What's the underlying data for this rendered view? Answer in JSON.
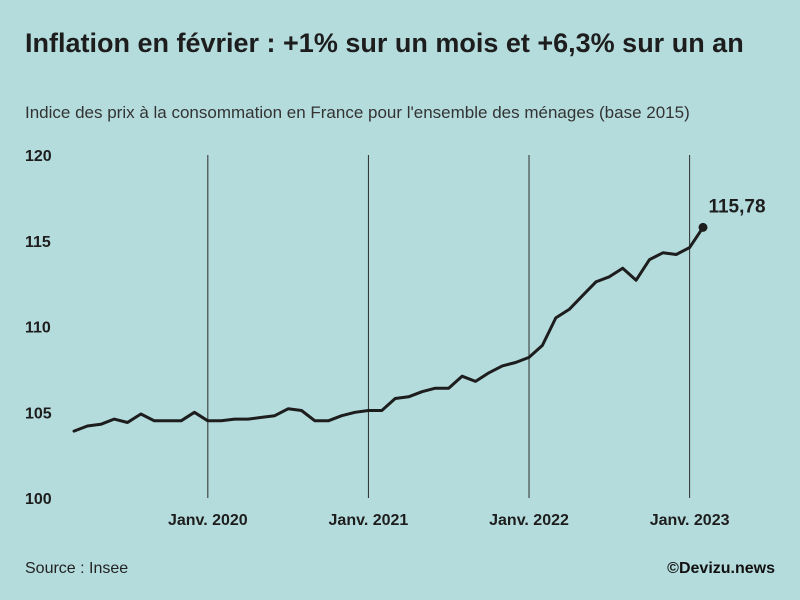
{
  "header": {
    "title": "Inflation en février : +1% sur un mois et +6,3% sur un an",
    "subtitle": "Indice des prix à la consommation en France pour l'ensemble des ménages (base 2015)"
  },
  "footer": {
    "source": "Source : Insee",
    "credit": "©Devizu.news"
  },
  "chart_data": {
    "type": "line",
    "title": "Inflation en février : +1% sur un mois et +6,3% sur un an",
    "xlabel": "",
    "ylabel": "",
    "ylim": [
      100,
      120
    ],
    "yticks": [
      "100",
      "105",
      "110",
      "115",
      "120"
    ],
    "xticks": [
      {
        "index": 10,
        "label": "Janv. 2020"
      },
      {
        "index": 22,
        "label": "Janv. 2021"
      },
      {
        "index": 34,
        "label": "Janv. 2022"
      },
      {
        "index": 46,
        "label": "Janv. 2023"
      }
    ],
    "end_label": "115,78",
    "series": [
      {
        "name": "Indice des prix à la consommation",
        "x": [
          "2019-03",
          "2019-04",
          "2019-05",
          "2019-06",
          "2019-07",
          "2019-08",
          "2019-09",
          "2019-10",
          "2019-11",
          "2019-12",
          "2020-01",
          "2020-02",
          "2020-03",
          "2020-04",
          "2020-05",
          "2020-06",
          "2020-07",
          "2020-08",
          "2020-09",
          "2020-10",
          "2020-11",
          "2020-12",
          "2021-01",
          "2021-02",
          "2021-03",
          "2021-04",
          "2021-05",
          "2021-06",
          "2021-07",
          "2021-08",
          "2021-09",
          "2021-10",
          "2021-11",
          "2021-12",
          "2022-01",
          "2022-02",
          "2022-03",
          "2022-04",
          "2022-05",
          "2022-06",
          "2022-07",
          "2022-08",
          "2022-09",
          "2022-10",
          "2022-11",
          "2022-12",
          "2023-01",
          "2023-02"
        ],
        "values": [
          103.9,
          104.2,
          104.3,
          104.6,
          104.4,
          104.9,
          104.5,
          104.5,
          104.5,
          105.0,
          104.5,
          104.5,
          104.6,
          104.6,
          104.7,
          104.8,
          105.2,
          105.1,
          104.5,
          104.5,
          104.8,
          105.0,
          105.1,
          105.1,
          105.8,
          105.9,
          106.2,
          106.4,
          106.4,
          107.1,
          106.8,
          107.3,
          107.7,
          107.9,
          108.2,
          108.9,
          110.5,
          111.0,
          111.8,
          112.6,
          112.9,
          113.4,
          112.7,
          113.9,
          114.3,
          114.2,
          114.6,
          115.78
        ]
      }
    ]
  }
}
